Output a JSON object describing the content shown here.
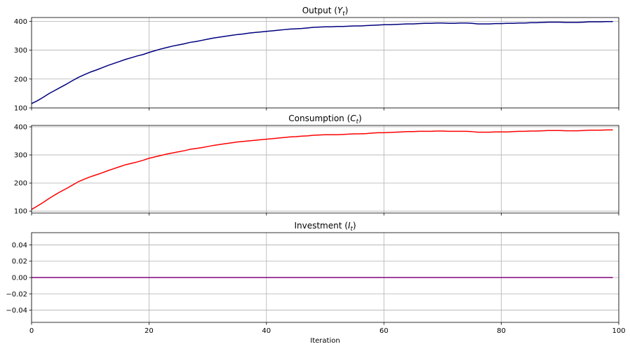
{
  "chart_data": [
    {
      "type": "line",
      "title": "Output (Y_t)",
      "title_main": "Output (",
      "title_var": "Y",
      "title_sub": "t",
      "title_close": ")",
      "xlim": [
        0,
        100
      ],
      "ylim": [
        100,
        413
      ],
      "yticks": [
        100,
        200,
        300,
        400
      ],
      "xticks": [
        0,
        20,
        40,
        60,
        80,
        100
      ],
      "grid": true,
      "series": [
        {
          "color": "#00007f",
          "x": [
            0,
            1,
            2,
            3,
            4,
            5,
            6,
            7,
            8,
            9,
            10,
            11,
            12,
            13,
            14,
            15,
            16,
            17,
            18,
            19,
            20,
            21,
            22,
            23,
            24,
            25,
            26,
            27,
            28,
            29,
            30,
            31,
            32,
            33,
            34,
            35,
            36,
            37,
            38,
            39,
            40,
            41,
            42,
            43,
            44,
            45,
            46,
            47,
            48,
            49,
            50,
            51,
            52,
            53,
            54,
            55,
            56,
            57,
            58,
            59,
            60,
            61,
            62,
            63,
            64,
            65,
            66,
            67,
            68,
            69,
            70,
            71,
            72,
            73,
            74,
            75,
            76,
            77,
            78,
            79,
            80,
            81,
            82,
            83,
            84,
            85,
            86,
            87,
            88,
            89,
            90,
            91,
            92,
            93,
            94,
            95,
            96,
            97,
            98,
            99
          ],
          "values": [
            115,
            125,
            137,
            150,
            161,
            172,
            183,
            195,
            206,
            215,
            224,
            231,
            239,
            247,
            254,
            261,
            268,
            274,
            280,
            285,
            292,
            298,
            304,
            309,
            314,
            318,
            322,
            327,
            330,
            334,
            338,
            342,
            345,
            348,
            351,
            354,
            356,
            359,
            361,
            363,
            365,
            367,
            369,
            371,
            373,
            374,
            375,
            377,
            379,
            380,
            381,
            381,
            382,
            382,
            383,
            384,
            384,
            385,
            386,
            387,
            388,
            388,
            389,
            390,
            391,
            391,
            392,
            393,
            393,
            394,
            394,
            393,
            393,
            394,
            394,
            393,
            391,
            391,
            391,
            392,
            392,
            393,
            393,
            394,
            394,
            395,
            395,
            396,
            397,
            397,
            397,
            396,
            396,
            396,
            397,
            398,
            398,
            398,
            399,
            399
          ]
        }
      ]
    },
    {
      "type": "line",
      "title": "Consumption (C_t)",
      "title_main": "Consumption (",
      "title_var": "C",
      "title_sub": "t",
      "title_close": ")",
      "xlim": [
        0,
        100
      ],
      "ylim": [
        93,
        405
      ],
      "yticks": [
        100,
        200,
        300,
        400
      ],
      "xticks": [
        0,
        20,
        40,
        60,
        80,
        100
      ],
      "grid": true,
      "series": [
        {
          "color": "#ff0000",
          "x": [
            0,
            1,
            2,
            3,
            4,
            5,
            6,
            7,
            8,
            9,
            10,
            11,
            12,
            13,
            14,
            15,
            16,
            17,
            18,
            19,
            20,
            21,
            22,
            23,
            24,
            25,
            26,
            27,
            28,
            29,
            30,
            31,
            32,
            33,
            34,
            35,
            36,
            37,
            38,
            39,
            40,
            41,
            42,
            43,
            44,
            45,
            46,
            47,
            48,
            49,
            50,
            51,
            52,
            53,
            54,
            55,
            56,
            57,
            58,
            59,
            60,
            61,
            62,
            63,
            64,
            65,
            66,
            67,
            68,
            69,
            70,
            71,
            72,
            73,
            74,
            75,
            76,
            77,
            78,
            79,
            80,
            81,
            82,
            83,
            84,
            85,
            86,
            87,
            88,
            89,
            90,
            91,
            92,
            93,
            94,
            95,
            96,
            97,
            98,
            99
          ],
          "values": [
            106,
            118,
            131,
            145,
            158,
            170,
            181,
            193,
            205,
            214,
            222,
            229,
            236,
            244,
            251,
            258,
            265,
            270,
            275,
            281,
            288,
            293,
            298,
            303,
            307,
            311,
            315,
            320,
            323,
            326,
            330,
            334,
            337,
            340,
            343,
            346,
            348,
            350,
            352,
            354,
            356,
            358,
            360,
            362,
            364,
            365,
            367,
            368,
            370,
            371,
            372,
            372,
            372,
            373,
            374,
            375,
            375,
            376,
            378,
            379,
            379,
            380,
            381,
            382,
            383,
            383,
            384,
            384,
            384,
            385,
            385,
            384,
            384,
            384,
            384,
            383,
            381,
            381,
            381,
            382,
            382,
            382,
            383,
            384,
            384,
            385,
            385,
            386,
            387,
            387,
            387,
            386,
            386,
            386,
            387,
            388,
            388,
            388,
            389,
            389
          ]
        }
      ]
    },
    {
      "type": "line",
      "title": "Investment (I_t)",
      "title_main": "Investment (",
      "title_var": "I",
      "title_sub": "t",
      "title_close": ")",
      "xlim": [
        0,
        100
      ],
      "ylim": [
        -0.055,
        0.055
      ],
      "yticks": [
        -0.04,
        -0.02,
        0.0,
        0.02,
        0.04
      ],
      "ytick_labels": [
        "−0.04",
        "−0.02",
        "0.00",
        "0.02",
        "0.04"
      ],
      "xticks": [
        0,
        20,
        40,
        60,
        80,
        100
      ],
      "xlabel": "Iteration",
      "grid": true,
      "series": [
        {
          "color": "#800080",
          "x": [
            0,
            99
          ],
          "values": [
            0,
            0
          ]
        }
      ]
    }
  ]
}
